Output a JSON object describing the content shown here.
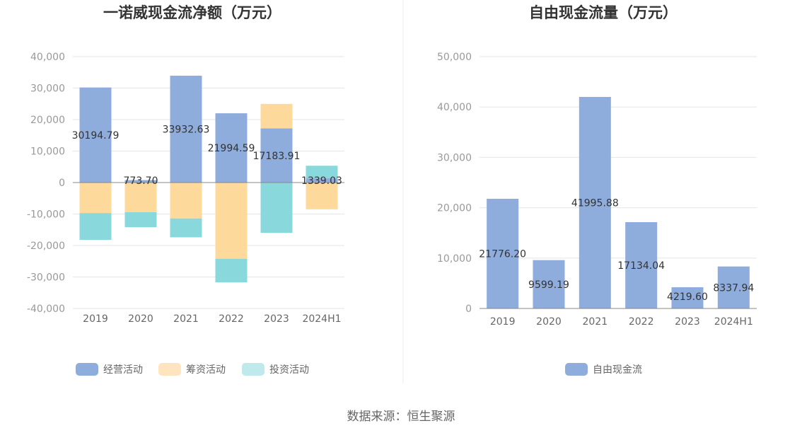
{
  "chart_data": [
    {
      "type": "bar",
      "title": "一诺威现金流净额（万元）",
      "categories": [
        "2019",
        "2020",
        "2021",
        "2022",
        "2023",
        "2024H1"
      ],
      "series": [
        {
          "name": "经营活动",
          "color": "#8eacdc",
          "values": [
            30194.79,
            773.7,
            33932.63,
            21994.59,
            17183.91,
            1339.03
          ]
        },
        {
          "name": "筹资活动",
          "color": "#fdd99c",
          "values": [
            -9700,
            -9400,
            -11400,
            -24200,
            7800,
            -8500
          ]
        },
        {
          "name": "投资活动",
          "color": "#88d8dc",
          "values": [
            -8500,
            -4800,
            -6000,
            -7500,
            -16000,
            4000
          ]
        }
      ],
      "data_labels": [
        "30194.79",
        "773.70",
        "33932.63",
        "21994.59",
        "17183.91",
        "1339.03"
      ],
      "yticks": [
        "40,000",
        "30,000",
        "20,000",
        "10,000",
        "0",
        "-10,000",
        "-20,000",
        "-30,000",
        "-40,000"
      ],
      "ylim": [
        -40000,
        40000
      ],
      "stacked": true,
      "grid": true,
      "legend_position": "bottom"
    },
    {
      "type": "bar",
      "title": "自由现金流量（万元）",
      "categories": [
        "2019",
        "2020",
        "2021",
        "2022",
        "2023",
        "2024H1"
      ],
      "series": [
        {
          "name": "自由现金流",
          "color": "#8eacdc",
          "values": [
            21776.2,
            9599.19,
            41995.88,
            17134.04,
            4219.6,
            8337.94
          ]
        }
      ],
      "data_labels": [
        "21776.20",
        "9599.19",
        "41995.88",
        "17134.04",
        "4219.60",
        "8337.94"
      ],
      "yticks": [
        "50,000",
        "40,000",
        "30,000",
        "20,000",
        "10,000",
        "0"
      ],
      "ylim": [
        0,
        50000
      ],
      "grid": true,
      "legend_position": "bottom"
    }
  ],
  "source": "数据来源：恒生聚源"
}
